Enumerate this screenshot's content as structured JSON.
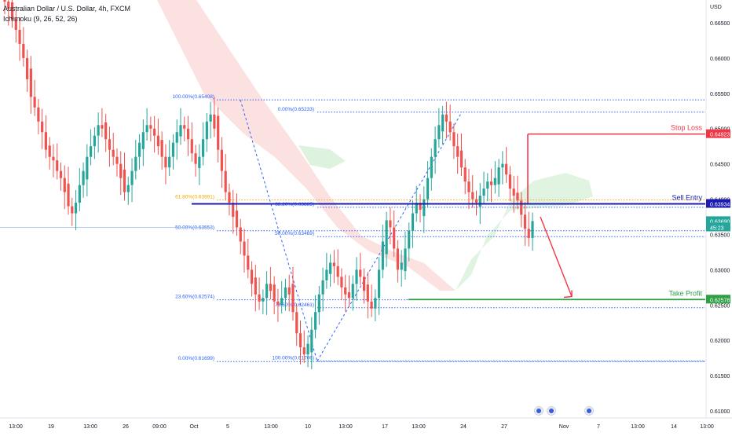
{
  "legend": {
    "symbol_line": "Australian Dollar / U.S. Dollar, 4h, FXCM",
    "indicator_line": "Ichimoku (9, 26, 52, 26)"
  },
  "colors": {
    "up": "#26a69a",
    "down": "#ef5350",
    "fib": "#2962ff",
    "fib_orange": "#f7a600",
    "sell": "#1b1bb3",
    "stop": "#f23645",
    "target": "#2ea043",
    "cloud_red": "#f9c9c9",
    "cloud_green": "#c8ebc9",
    "axis_text": "#131722",
    "grid": "#f0f3fa"
  },
  "annotations": {
    "stop_loss": "Stop Loss",
    "sell_entry": "Sell Entry",
    "take_profit": "Take Profit",
    "fib_a": [
      {
        "text": "100.00%(0.65408)",
        "price": 0.65408
      },
      {
        "text": "61.80%(0.63991)",
        "price": 0.63991
      },
      {
        "text": "50.00%(0.63553)",
        "price": 0.63553
      },
      {
        "text": "23.60%(0.62574)",
        "price": 0.62574
      },
      {
        "text": "0.00%(0.61699)",
        "price": 0.61699
      }
    ],
    "fib_b": [
      {
        "text": "0.00%(0.65233)",
        "price": 0.65233
      },
      {
        "text": "38.20%(0.63885)",
        "price": 0.63885
      },
      {
        "text": "50.00%(0.63469)",
        "price": 0.63469
      },
      {
        "text": "78.60%(0.62461)",
        "price": 0.62461
      },
      {
        "text": "100.00%(0.61706)",
        "price": 0.61706
      }
    ]
  },
  "price_axis": {
    "currency": "USD",
    "ticks": [
      "0.66500",
      "0.66000",
      "0.65500",
      "0.65000",
      "0.64500",
      "0.64000",
      "0.63500",
      "0.63000",
      "0.62500",
      "0.62000",
      "0.61500",
      "0.61000"
    ],
    "tags": [
      {
        "text": "0.64923",
        "price": 0.64923,
        "color": "#f23645"
      },
      {
        "text": "0.63934",
        "price": 0.63934,
        "color": "#1b1bb3"
      },
      {
        "text": "0.63690",
        "price": 0.6369,
        "color": "#26a69a"
      },
      {
        "text": "45:23",
        "price": 0.636,
        "color": "#26a69a"
      },
      {
        "text": "0.62578",
        "price": 0.62578,
        "color": "#2ea043"
      }
    ]
  },
  "time_axis": {
    "labels": [
      "13:00",
      "19",
      "13:00",
      "26",
      "09:00",
      "Oct",
      "5",
      "13:00",
      "10",
      "13:00",
      "17",
      "13:00",
      "24",
      "27",
      "Nov",
      "7",
      "13:00",
      "14",
      "13:00"
    ]
  },
  "chart_data": {
    "type": "candlestick",
    "title": "Australian Dollar / U.S. Dollar, 4h, FXCM",
    "ylim": [
      0.61,
      0.67
    ],
    "yticks": [
      0.665,
      0.66,
      0.655,
      0.65,
      0.645,
      0.64,
      0.635,
      0.63,
      0.625,
      0.62,
      0.615,
      0.61
    ],
    "levels": {
      "stop_loss": 0.64923,
      "sell_entry": 0.63934,
      "current_price": 0.6369,
      "take_profit": 0.62578
    },
    "fib_retracement_a": {
      "100.00%": 0.65408,
      "61.80%": 0.63991,
      "50.00%": 0.63553,
      "23.60%": 0.62574,
      "0.00%": 0.61699
    },
    "fib_retracement_b": {
      "0.00%": 0.65233,
      "38.20%": 0.63885,
      "50.00%": 0.63469,
      "78.60%": 0.62461,
      "100.00%": 0.61706
    },
    "closes": [
      0.668,
      0.667,
      0.6655,
      0.664,
      0.662,
      0.66,
      0.657,
      0.6545,
      0.653,
      0.651,
      0.6495,
      0.647,
      0.646,
      0.6455,
      0.644,
      0.643,
      0.641,
      0.639,
      0.638,
      0.6395,
      0.642,
      0.644,
      0.646,
      0.6475,
      0.649,
      0.6505,
      0.65,
      0.6485,
      0.647,
      0.646,
      0.645,
      0.643,
      0.641,
      0.642,
      0.644,
      0.646,
      0.648,
      0.6495,
      0.6505,
      0.65,
      0.649,
      0.6475,
      0.646,
      0.6445,
      0.646,
      0.648,
      0.6495,
      0.6505,
      0.65,
      0.6485,
      0.6465,
      0.645,
      0.646,
      0.6485,
      0.651,
      0.652,
      0.65,
      0.647,
      0.644,
      0.641,
      0.6395,
      0.6375,
      0.636,
      0.634,
      0.632,
      0.63,
      0.628,
      0.6265,
      0.6255,
      0.626,
      0.628,
      0.627,
      0.6255,
      0.625,
      0.626,
      0.6275,
      0.6265,
      0.624,
      0.621,
      0.619,
      0.618,
      0.6195,
      0.6215,
      0.624,
      0.6265,
      0.6285,
      0.63,
      0.631,
      0.6305,
      0.629,
      0.6275,
      0.6265,
      0.626,
      0.628,
      0.63,
      0.629,
      0.627,
      0.6255,
      0.6245,
      0.626,
      0.63,
      0.634,
      0.637,
      0.636,
      0.633,
      0.63,
      0.631,
      0.633,
      0.6355,
      0.638,
      0.6395,
      0.6385,
      0.64,
      0.643,
      0.646,
      0.6485,
      0.6505,
      0.652,
      0.651,
      0.6495,
      0.6475,
      0.646,
      0.6445,
      0.6425,
      0.641,
      0.64,
      0.6395,
      0.6405,
      0.6415,
      0.6425,
      0.642,
      0.643,
      0.6445,
      0.645,
      0.6435,
      0.6415,
      0.6405,
      0.6398,
      0.6378,
      0.6358,
      0.6345,
      0.6369
    ]
  }
}
